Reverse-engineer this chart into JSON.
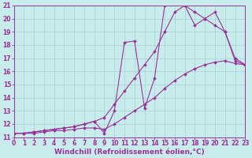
{
  "xlabel": "Windchill (Refroidissement éolien,°C)",
  "background_color": "#c8ecec",
  "grid_color": "#a8d4d4",
  "line_color": "#993399",
  "xlim": [
    0,
    23
  ],
  "ylim": [
    11,
    21
  ],
  "xticks": [
    0,
    1,
    2,
    3,
    4,
    5,
    6,
    7,
    8,
    9,
    10,
    11,
    12,
    13,
    14,
    15,
    16,
    17,
    18,
    19,
    20,
    21,
    22,
    23
  ],
  "yticks": [
    11,
    12,
    13,
    14,
    15,
    16,
    17,
    18,
    19,
    20,
    21
  ],
  "series1_x": [
    0,
    1,
    2,
    3,
    4,
    5,
    6,
    7,
    8,
    9,
    10,
    11,
    12,
    13,
    14,
    15,
    16,
    17,
    18,
    19,
    20,
    21,
    22,
    23
  ],
  "series1_y": [
    11.3,
    11.3,
    11.3,
    11.4,
    11.5,
    11.5,
    11.6,
    11.7,
    11.7,
    11.6,
    12.0,
    12.5,
    13.0,
    13.5,
    14.0,
    14.7,
    15.3,
    15.8,
    16.2,
    16.5,
    16.7,
    16.8,
    16.6,
    16.5
  ],
  "series2_x": [
    0,
    1,
    2,
    3,
    4,
    5,
    6,
    7,
    8,
    9,
    10,
    11,
    12,
    13,
    14,
    15,
    16,
    17,
    18,
    19,
    20,
    21,
    22,
    23
  ],
  "series2_y": [
    11.3,
    11.3,
    11.4,
    11.5,
    11.6,
    11.7,
    11.8,
    12.0,
    12.2,
    12.5,
    13.5,
    14.5,
    15.5,
    16.5,
    17.5,
    19.0,
    20.5,
    21.0,
    20.5,
    20.0,
    19.5,
    19.0,
    16.8,
    16.5
  ],
  "series3_x": [
    0,
    1,
    2,
    3,
    4,
    5,
    6,
    7,
    8,
    9,
    10,
    11,
    12,
    13,
    14,
    15,
    16,
    17,
    18,
    19,
    20,
    21,
    22,
    23
  ],
  "series3_y": [
    11.3,
    11.3,
    11.4,
    11.5,
    11.6,
    11.7,
    11.8,
    12.0,
    12.2,
    11.3,
    13.0,
    18.2,
    18.3,
    13.2,
    15.5,
    21.0,
    21.1,
    21.0,
    19.5,
    20.0,
    20.5,
    19.0,
    17.0,
    16.5
  ],
  "markersize": 2.0,
  "linewidth": 0.8,
  "xlabel_fontsize": 6.5,
  "tick_fontsize": 5.5
}
